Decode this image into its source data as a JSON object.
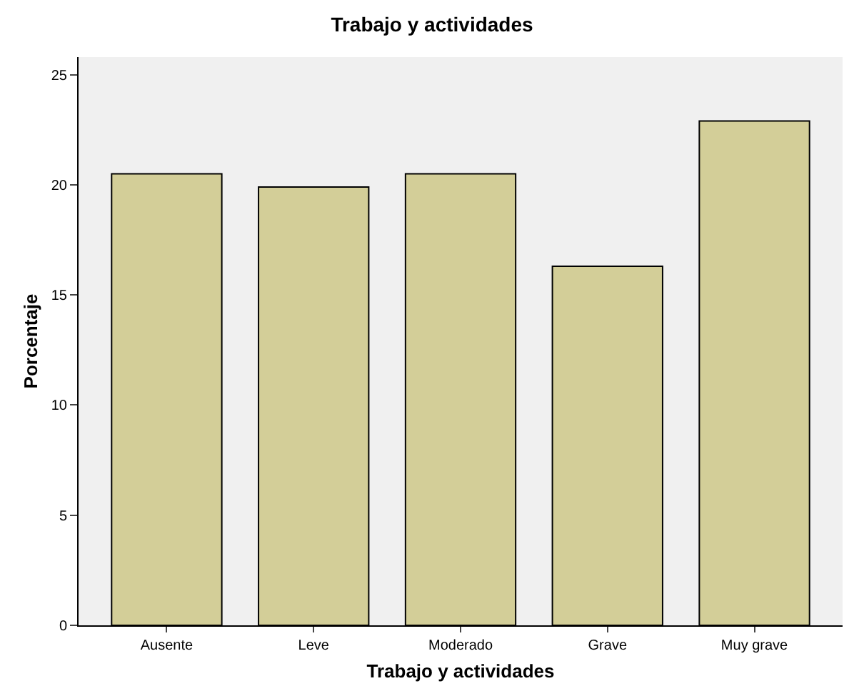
{
  "chart_data": {
    "type": "bar",
    "title": "Trabajo y actividades",
    "xlabel": "Trabajo y actividades",
    "ylabel": "Porcentaje",
    "categories": [
      "Ausente",
      "Leve",
      "Moderado",
      "Grave",
      "Muy grave"
    ],
    "values": [
      20.5,
      19.9,
      20.5,
      16.3,
      22.9
    ],
    "color": "#d3ce98",
    "ylim": [
      0,
      25.8
    ],
    "yticks": [
      0,
      5,
      10,
      15,
      20,
      25
    ],
    "grid": false
  }
}
